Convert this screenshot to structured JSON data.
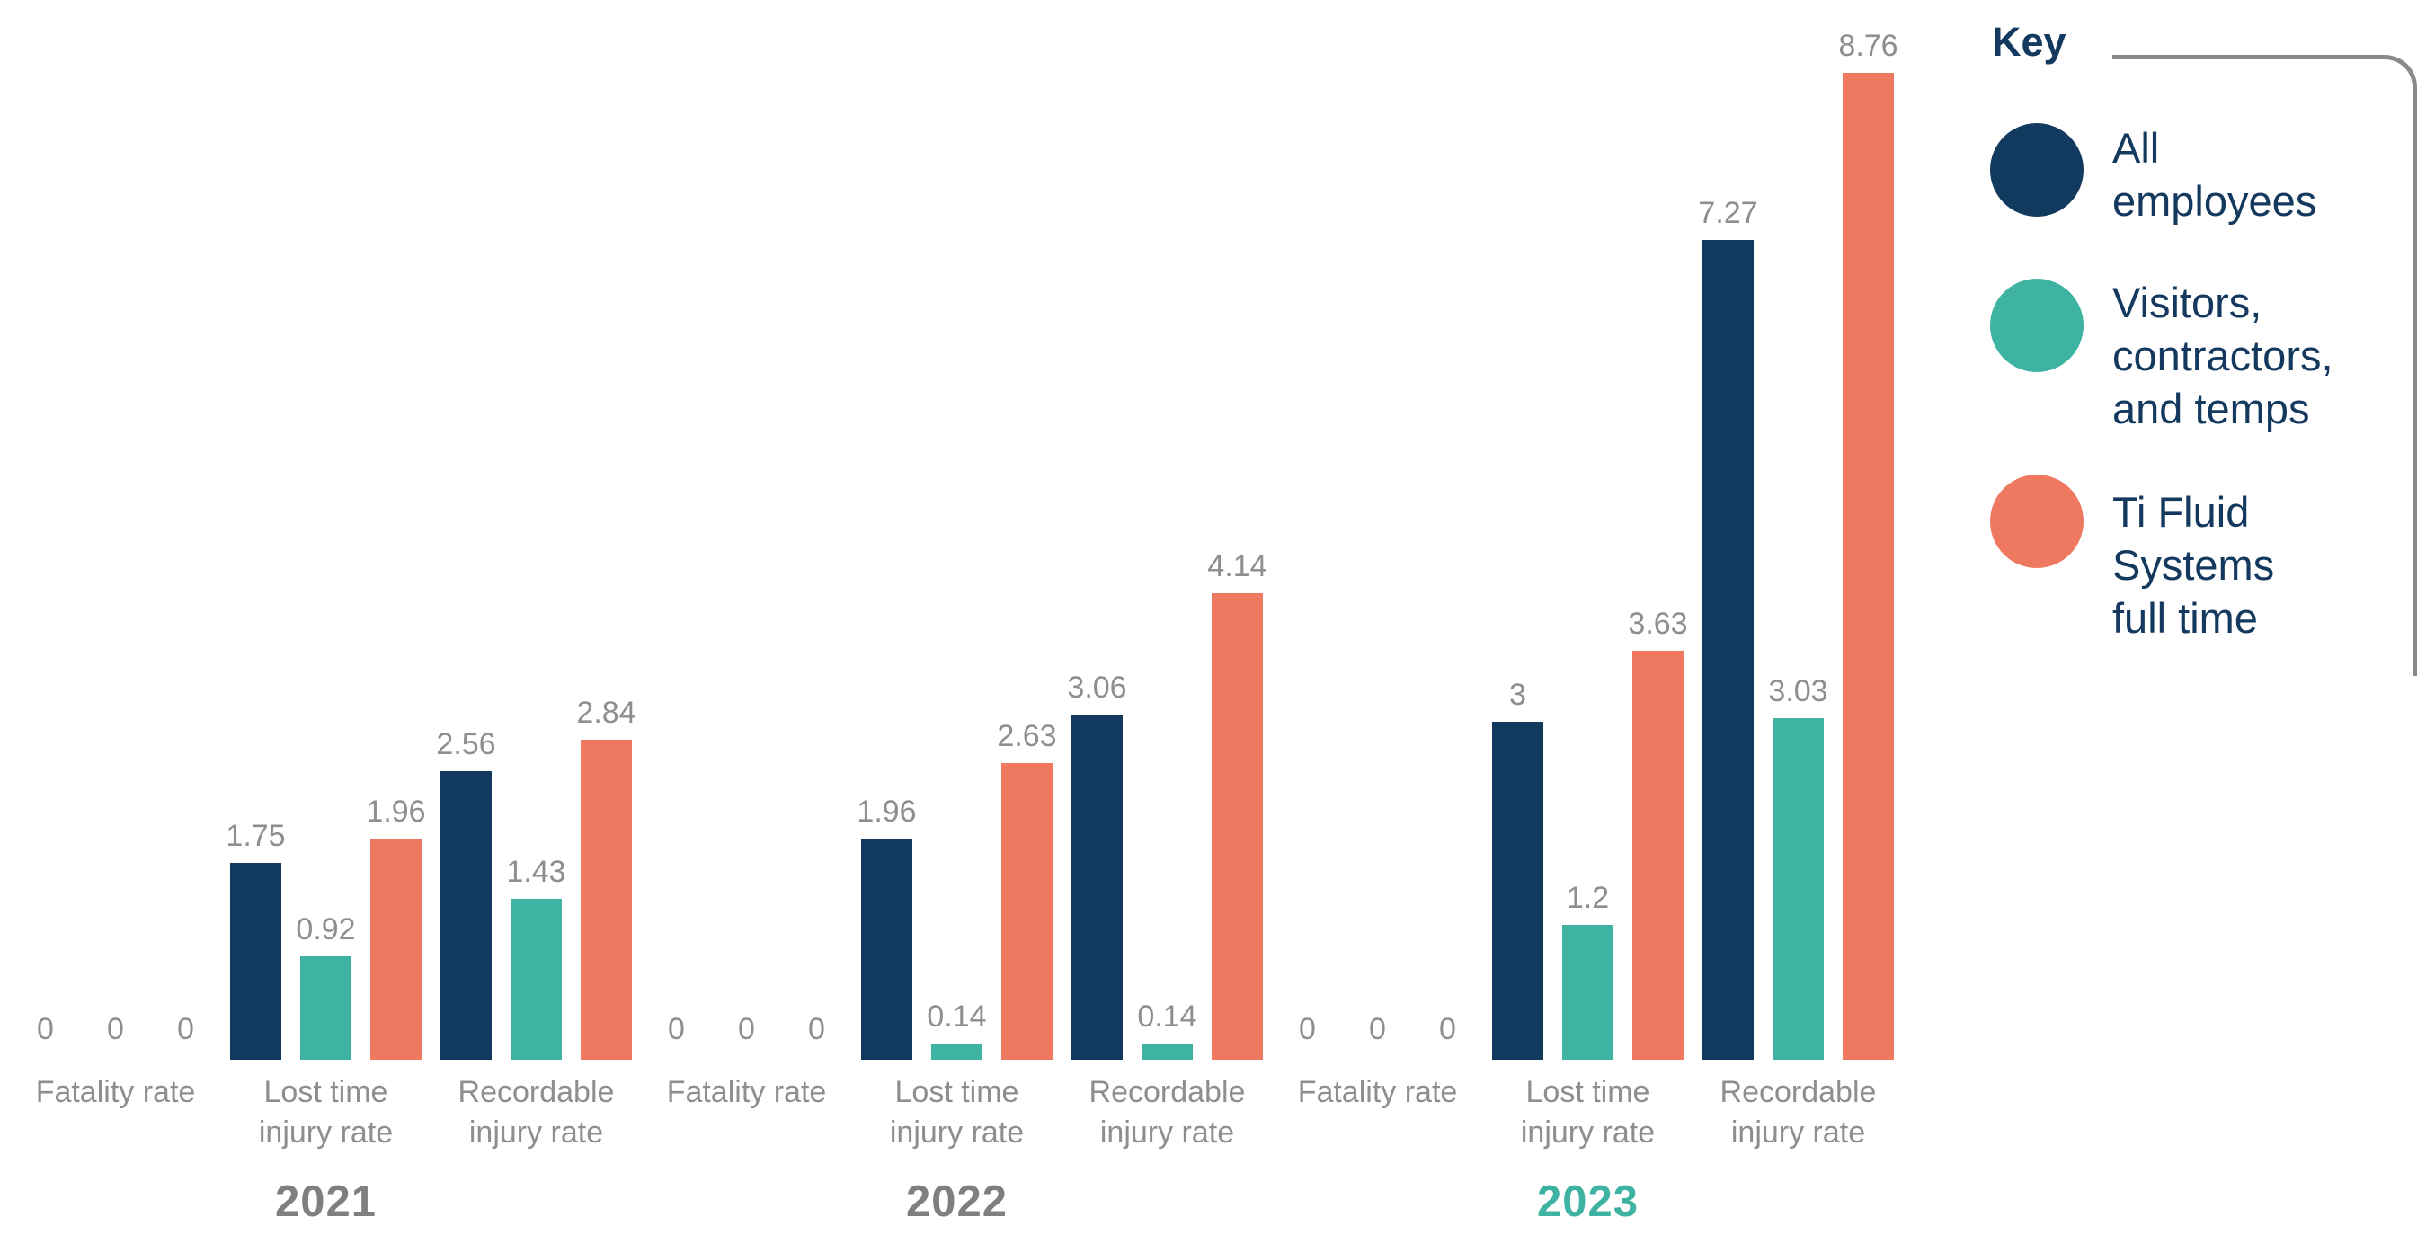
{
  "chart_data": {
    "type": "bar",
    "title": "",
    "xlabel": "",
    "ylabel": "",
    "ylim": [
      0,
      9
    ],
    "grid": false,
    "axes_visible": false,
    "legend_position": "right",
    "series": [
      {
        "name": "All employees",
        "color": "#123a5e"
      },
      {
        "name": "Visitors, contractors, and temps",
        "color": "#3fb3a2"
      },
      {
        "name": "Ti Fluid Systems full time",
        "color": "#ef7861"
      }
    ],
    "groups": [
      {
        "year": "2021",
        "year_color": "#7f7f7f",
        "categories": [
          {
            "label": "Fatality rate",
            "label_lines": [
              "Fatality rate"
            ],
            "values": [
              0,
              0,
              0
            ],
            "labels": [
              "0",
              "0",
              "0"
            ]
          },
          {
            "label": "Lost time injury rate",
            "label_lines": [
              "Lost time",
              "injury rate"
            ],
            "values": [
              1.75,
              0.92,
              1.96
            ],
            "labels": [
              "1.75",
              "0.92",
              "1.96"
            ]
          },
          {
            "label": "Recordable injury rate",
            "label_lines": [
              "Recordable",
              "injury rate"
            ],
            "values": [
              2.56,
              1.43,
              2.84
            ],
            "labels": [
              "2.56",
              "1.43",
              "2.84"
            ]
          }
        ]
      },
      {
        "year": "2022",
        "year_color": "#7f7f7f",
        "categories": [
          {
            "label": "Fatality rate",
            "label_lines": [
              "Fatality rate"
            ],
            "values": [
              0,
              0,
              0
            ],
            "labels": [
              "0",
              "0",
              "0"
            ]
          },
          {
            "label": "Lost time injury rate",
            "label_lines": [
              "Lost time",
              "injury rate"
            ],
            "values": [
              1.96,
              0.14,
              2.63
            ],
            "labels": [
              "1.96",
              "0.14",
              "2.63"
            ]
          },
          {
            "label": "Recordable injury rate",
            "label_lines": [
              "Recordable",
              "injury rate"
            ],
            "values": [
              3.06,
              0.14,
              4.14
            ],
            "labels": [
              "3.06",
              "0.14",
              "4.14"
            ]
          }
        ]
      },
      {
        "year": "2023",
        "year_color": "#3fb3a2",
        "categories": [
          {
            "label": "Fatality rate",
            "label_lines": [
              "Fatality rate"
            ],
            "values": [
              0,
              0,
              0
            ],
            "labels": [
              "0",
              "0",
              "0"
            ]
          },
          {
            "label": "Lost time injury rate",
            "label_lines": [
              "Lost time",
              "injury rate"
            ],
            "values": [
              3,
              1.2,
              3.63
            ],
            "labels": [
              "3",
              "1.2",
              "3.63"
            ]
          },
          {
            "label": "Recordable injury rate",
            "label_lines": [
              "Recordable",
              "injury rate"
            ],
            "values": [
              7.27,
              3.03,
              8.76
            ],
            "labels": [
              "7.27",
              "3.03",
              "8.76"
            ]
          }
        ]
      }
    ],
    "legend": {
      "title": "Key",
      "items": [
        {
          "lines": [
            "All",
            "employees"
          ],
          "color": "#123a5e"
        },
        {
          "lines": [
            "Visitors,",
            "contractors,",
            "and temps"
          ],
          "color": "#3fb3a2"
        },
        {
          "lines": [
            "Ti Fluid",
            "Systems",
            "full time"
          ],
          "color": "#ef7861"
        }
      ]
    }
  }
}
